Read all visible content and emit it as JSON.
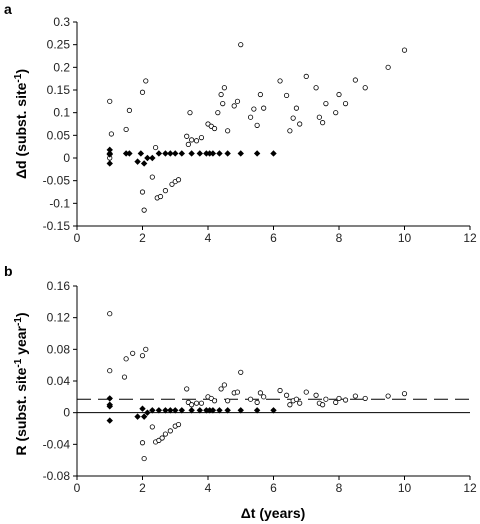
{
  "chart_data": [
    {
      "type": "scatter",
      "panel_label": "a",
      "xlabel": "Δt (years)",
      "ylabel_main": "Δd (subst. site",
      "ylabel_sup": "-1",
      "ylabel_end": ")",
      "xlim": [
        0,
        12
      ],
      "ylim": [
        -0.15,
        0.3
      ],
      "xticks": [
        0,
        2,
        4,
        6,
        8,
        10,
        12
      ],
      "yticks": [
        -0.15,
        -0.1,
        -0.05,
        0,
        0.05,
        0.1,
        0.15,
        0.2,
        0.25,
        0.3
      ],
      "ytick_labels": [
        "-0.15",
        "-0.1",
        "-0.05",
        "0",
        "0.05",
        "0.1",
        "0.15",
        "0.2",
        "0.25",
        "0.3"
      ],
      "reference_lines": [],
      "series": [
        {
          "marker": "open-circle",
          "points": [
            [
              1.0,
              0.125
            ],
            [
              1.05,
              0.053
            ],
            [
              1.0,
              0.0
            ],
            [
              1.5,
              0.063
            ],
            [
              1.6,
              0.105
            ],
            [
              2.0,
              0.145
            ],
            [
              2.1,
              0.17
            ],
            [
              2.0,
              -0.075
            ],
            [
              2.05,
              -0.115
            ],
            [
              2.3,
              -0.042
            ],
            [
              2.4,
              0.023
            ],
            [
              2.45,
              -0.088
            ],
            [
              2.55,
              -0.085
            ],
            [
              2.7,
              -0.072
            ],
            [
              2.9,
              -0.058
            ],
            [
              3.0,
              -0.052
            ],
            [
              3.1,
              -0.048
            ],
            [
              3.35,
              0.048
            ],
            [
              3.4,
              0.03
            ],
            [
              3.45,
              0.1
            ],
            [
              3.5,
              0.04
            ],
            [
              3.65,
              0.038
            ],
            [
              3.8,
              0.045
            ],
            [
              4.0,
              0.075
            ],
            [
              4.1,
              0.07
            ],
            [
              4.2,
              0.065
            ],
            [
              4.3,
              0.1
            ],
            [
              4.4,
              0.14
            ],
            [
              4.45,
              0.12
            ],
            [
              4.5,
              0.155
            ],
            [
              4.6,
              0.06
            ],
            [
              4.8,
              0.115
            ],
            [
              4.9,
              0.125
            ],
            [
              5.0,
              0.25
            ],
            [
              5.3,
              0.09
            ],
            [
              5.4,
              0.108
            ],
            [
              5.5,
              0.072
            ],
            [
              5.6,
              0.14
            ],
            [
              5.7,
              0.11
            ],
            [
              6.2,
              0.17
            ],
            [
              6.4,
              0.138
            ],
            [
              6.5,
              0.06
            ],
            [
              6.6,
              0.088
            ],
            [
              6.7,
              0.11
            ],
            [
              6.8,
              0.075
            ],
            [
              7.0,
              0.18
            ],
            [
              7.3,
              0.155
            ],
            [
              7.4,
              0.09
            ],
            [
              7.5,
              0.078
            ],
            [
              7.6,
              0.12
            ],
            [
              7.9,
              0.1
            ],
            [
              8.0,
              0.14
            ],
            [
              8.2,
              0.12
            ],
            [
              8.5,
              0.172
            ],
            [
              8.8,
              0.155
            ],
            [
              9.5,
              0.2
            ],
            [
              10.0,
              0.238
            ]
          ]
        },
        {
          "marker": "filled-diamond",
          "points": [
            [
              1.0,
              0.018
            ],
            [
              1.0,
              0.01
            ],
            [
              1.0,
              0.008
            ],
            [
              1.0,
              -0.012
            ],
            [
              1.5,
              0.01
            ],
            [
              1.6,
              0.01
            ],
            [
              1.85,
              -0.008
            ],
            [
              1.95,
              0.01
            ],
            [
              2.05,
              -0.012
            ],
            [
              2.15,
              0.0
            ],
            [
              2.3,
              0.0
            ],
            [
              2.5,
              0.01
            ],
            [
              2.7,
              0.01
            ],
            [
              2.85,
              0.01
            ],
            [
              3.0,
              0.01
            ],
            [
              3.2,
              0.01
            ],
            [
              3.5,
              0.01
            ],
            [
              3.75,
              0.01
            ],
            [
              3.95,
              0.01
            ],
            [
              4.05,
              0.01
            ],
            [
              4.15,
              0.01
            ],
            [
              4.35,
              0.01
            ],
            [
              4.6,
              0.01
            ],
            [
              5.0,
              0.01
            ],
            [
              5.5,
              0.01
            ],
            [
              6.0,
              0.01
            ]
          ]
        }
      ]
    },
    {
      "type": "scatter",
      "panel_label": "b",
      "xlabel": "Δt (years)",
      "ylabel_main": "R (subst. site",
      "ylabel_sup": "-1",
      "ylabel_mid": " year",
      "ylabel_sup2": "-1",
      "ylabel_end": ")",
      "xlim": [
        0,
        12
      ],
      "ylim": [
        -0.08,
        0.16
      ],
      "xticks": [
        0,
        2,
        4,
        6,
        8,
        10,
        12
      ],
      "yticks": [
        -0.08,
        -0.04,
        0,
        0.04,
        0.08,
        0.12,
        0.16
      ],
      "ytick_labels": [
        "-0.08",
        "-0.04",
        "0",
        "0.04",
        "0.08",
        "0.12",
        "0.16"
      ],
      "reference_lines": [
        {
          "y": 0.0,
          "style": "solid"
        },
        {
          "y": 0.017,
          "style": "dashed"
        }
      ],
      "series": [
        {
          "marker": "open-circle",
          "points": [
            [
              1.0,
              0.125
            ],
            [
              1.0,
              0.053
            ],
            [
              1.5,
              0.068
            ],
            [
              1.45,
              0.045
            ],
            [
              1.7,
              0.075
            ],
            [
              2.0,
              0.072
            ],
            [
              2.1,
              0.08
            ],
            [
              2.0,
              -0.038
            ],
            [
              2.05,
              -0.058
            ],
            [
              2.3,
              -0.018
            ],
            [
              2.4,
              -0.037
            ],
            [
              2.5,
              -0.035
            ],
            [
              2.6,
              -0.032
            ],
            [
              2.7,
              -0.027
            ],
            [
              2.85,
              -0.023
            ],
            [
              3.0,
              -0.017
            ],
            [
              3.1,
              -0.015
            ],
            [
              3.35,
              0.03
            ],
            [
              3.4,
              0.013
            ],
            [
              3.5,
              0.01
            ],
            [
              3.65,
              0.012
            ],
            [
              3.8,
              0.012
            ],
            [
              4.0,
              0.02
            ],
            [
              4.1,
              0.018
            ],
            [
              4.2,
              0.015
            ],
            [
              4.4,
              0.03
            ],
            [
              4.5,
              0.035
            ],
            [
              4.6,
              0.015
            ],
            [
              4.8,
              0.025
            ],
            [
              4.9,
              0.026
            ],
            [
              5.0,
              0.051
            ],
            [
              5.3,
              0.017
            ],
            [
              5.5,
              0.013
            ],
            [
              5.6,
              0.025
            ],
            [
              5.7,
              0.02
            ],
            [
              6.2,
              0.028
            ],
            [
              6.4,
              0.022
            ],
            [
              6.5,
              0.01
            ],
            [
              6.6,
              0.015
            ],
            [
              6.7,
              0.017
            ],
            [
              6.8,
              0.012
            ],
            [
              7.0,
              0.026
            ],
            [
              7.3,
              0.022
            ],
            [
              7.4,
              0.012
            ],
            [
              7.5,
              0.01
            ],
            [
              7.6,
              0.017
            ],
            [
              7.9,
              0.013
            ],
            [
              8.0,
              0.018
            ],
            [
              8.2,
              0.016
            ],
            [
              8.5,
              0.021
            ],
            [
              8.8,
              0.018
            ],
            [
              9.5,
              0.021
            ],
            [
              10.0,
              0.024
            ]
          ]
        },
        {
          "marker": "filled-diamond",
          "points": [
            [
              1.0,
              0.018
            ],
            [
              1.0,
              0.01
            ],
            [
              1.0,
              0.008
            ],
            [
              1.0,
              -0.01
            ],
            [
              1.85,
              -0.005
            ],
            [
              2.0,
              0.005
            ],
            [
              2.05,
              -0.005
            ],
            [
              2.15,
              0.0
            ],
            [
              2.3,
              0.003
            ],
            [
              2.5,
              0.003
            ],
            [
              2.7,
              0.003
            ],
            [
              2.85,
              0.003
            ],
            [
              3.0,
              0.003
            ],
            [
              3.2,
              0.003
            ],
            [
              3.5,
              0.003
            ],
            [
              3.75,
              0.003
            ],
            [
              3.95,
              0.003
            ],
            [
              4.05,
              0.003
            ],
            [
              4.15,
              0.003
            ],
            [
              4.35,
              0.003
            ],
            [
              4.6,
              0.003
            ],
            [
              5.0,
              0.003
            ],
            [
              5.5,
              0.003
            ],
            [
              6.0,
              0.003
            ]
          ]
        }
      ]
    }
  ]
}
